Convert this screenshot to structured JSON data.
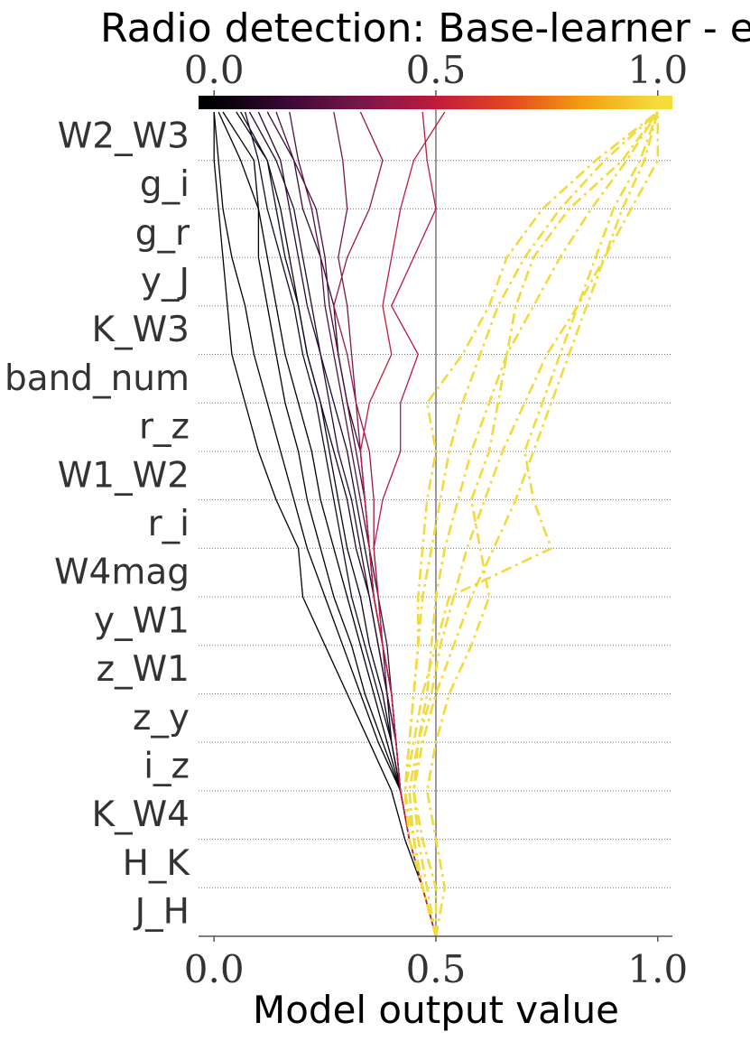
{
  "chart_data": {
    "type": "decision",
    "title": "Radio detection: Base-learner - et",
    "xlabel": "Model output value",
    "features": [
      "J_H",
      "H_K",
      "K_W4",
      "i_z",
      "z_y",
      "z_W1",
      "y_W1",
      "W4mag",
      "r_i",
      "W1_W2",
      "r_z",
      "band_num",
      "K_W3",
      "y_J",
      "g_r",
      "g_i",
      "W2_W3"
    ],
    "base_value": 0.5,
    "xlim": [
      -0.035,
      1.033
    ],
    "xticks": [
      {
        "value": 0,
        "label": "0.0"
      },
      {
        "value": 0.5,
        "label": "0.5"
      },
      {
        "value": 1,
        "label": "1.0"
      }
    ],
    "grid": true,
    "colorbar": {
      "lim": [
        0,
        1
      ],
      "ticks": [
        {
          "value": 0,
          "label": "0.0"
        },
        {
          "value": 0.5,
          "label": "0.5"
        },
        {
          "value": 1,
          "label": "1.0"
        }
      ],
      "colors": [
        "#000004",
        "#3b0a35",
        "#7a1649",
        "#c01a3e",
        "#e4471f",
        "#f59f10",
        "#f5dd3c"
      ]
    },
    "series": [
      {
        "color": "#000004",
        "linestyle": "solid",
        "values": [
          0.5,
          0.47,
          0.44,
          0.42,
          0.37,
          0.33,
          0.29,
          0.25,
          0.21,
          0.18,
          0.15,
          0.12,
          0.09,
          0.07,
          0.04,
          0.02,
          0.01,
          0.0
        ]
      },
      {
        "color": "#000004",
        "linestyle": "solid",
        "values": [
          0.5,
          0.47,
          0.44,
          0.42,
          0.39,
          0.36,
          0.33,
          0.3,
          0.27,
          0.24,
          0.22,
          0.19,
          0.16,
          0.14,
          0.12,
          0.1,
          0.06,
          0.01
        ]
      },
      {
        "color": "#0a0414",
        "linestyle": "solid",
        "values": [
          0.5,
          0.47,
          0.44,
          0.42,
          0.4,
          0.38,
          0.35,
          0.33,
          0.3,
          0.28,
          0.26,
          0.24,
          0.21,
          0.19,
          0.17,
          0.15,
          0.12,
          0.05
        ]
      },
      {
        "color": "#000004",
        "linestyle": "solid",
        "values": [
          0.5,
          0.47,
          0.44,
          0.42,
          0.38,
          0.34,
          0.31,
          0.27,
          0.24,
          0.21,
          0.19,
          0.16,
          0.14,
          0.12,
          0.1,
          0.1,
          0.09,
          0.02
        ]
      },
      {
        "color": "#120821",
        "linestyle": "solid",
        "values": [
          0.5,
          0.47,
          0.44,
          0.42,
          0.4,
          0.39,
          0.37,
          0.35,
          0.32,
          0.3,
          0.27,
          0.24,
          0.21,
          0.19,
          0.16,
          0.14,
          0.12,
          0.06
        ]
      },
      {
        "color": "#000004",
        "linestyle": "solid",
        "values": [
          0.5,
          0.47,
          0.43,
          0.4,
          0.35,
          0.3,
          0.25,
          0.2,
          0.19,
          0.14,
          0.1,
          0.07,
          0.04,
          0.03,
          0.02,
          0.01,
          0.0,
          0.0
        ]
      },
      {
        "color": "#1b0c2c",
        "linestyle": "solid",
        "values": [
          0.5,
          0.47,
          0.44,
          0.42,
          0.41,
          0.4,
          0.38,
          0.36,
          0.34,
          0.32,
          0.3,
          0.27,
          0.24,
          0.22,
          0.2,
          0.18,
          0.14,
          0.08
        ]
      },
      {
        "color": "#250b31",
        "linestyle": "solid",
        "values": [
          0.5,
          0.47,
          0.44,
          0.42,
          0.41,
          0.39,
          0.37,
          0.35,
          0.33,
          0.31,
          0.28,
          0.26,
          0.24,
          0.21,
          0.19,
          0.17,
          0.15,
          0.1
        ]
      },
      {
        "color": "#3b0a35",
        "linestyle": "solid",
        "values": [
          0.5,
          0.47,
          0.44,
          0.42,
          0.41,
          0.4,
          0.39,
          0.37,
          0.35,
          0.34,
          0.33,
          0.3,
          0.28,
          0.27,
          0.24,
          0.2,
          0.18,
          0.12
        ]
      },
      {
        "color": "#140a24",
        "linestyle": "solid",
        "values": [
          0.5,
          0.47,
          0.44,
          0.42,
          0.4,
          0.37,
          0.34,
          0.31,
          0.29,
          0.27,
          0.25,
          0.23,
          0.2,
          0.18,
          0.15,
          0.12,
          0.1,
          0.07
        ]
      },
      {
        "color": "#4a0d3c",
        "linestyle": "solid",
        "values": [
          0.5,
          0.47,
          0.44,
          0.42,
          0.41,
          0.39,
          0.38,
          0.36,
          0.35,
          0.34,
          0.32,
          0.3,
          0.28,
          0.26,
          0.25,
          0.23,
          0.18,
          0.14
        ]
      },
      {
        "color": "#551040",
        "linestyle": "solid",
        "values": [
          0.5,
          0.47,
          0.44,
          0.42,
          0.41,
          0.4,
          0.38,
          0.36,
          0.35,
          0.33,
          0.31,
          0.29,
          0.27,
          0.25,
          0.24,
          0.22,
          0.19,
          0.17
        ]
      },
      {
        "color": "#7a1649",
        "linestyle": "solid",
        "values": [
          0.5,
          0.47,
          0.44,
          0.42,
          0.41,
          0.4,
          0.38,
          0.36,
          0.35,
          0.34,
          0.33,
          0.32,
          0.31,
          0.3,
          0.28,
          0.3,
          0.29,
          0.27
        ]
      },
      {
        "color": "#9a1747",
        "linestyle": "solid",
        "values": [
          0.5,
          0.47,
          0.44,
          0.42,
          0.41,
          0.4,
          0.38,
          0.37,
          0.36,
          0.36,
          0.35,
          0.32,
          0.3,
          0.27,
          0.3,
          0.35,
          0.38,
          0.33
        ]
      },
      {
        "color": "#b81a42",
        "linestyle": "solid",
        "values": [
          0.5,
          0.47,
          0.44,
          0.42,
          0.41,
          0.4,
          0.38,
          0.37,
          0.36,
          0.38,
          0.42,
          0.42,
          0.46,
          0.4,
          0.45,
          0.5,
          0.48,
          0.47
        ]
      },
      {
        "color": "#c01a3e",
        "linestyle": "solid",
        "values": [
          0.5,
          0.47,
          0.44,
          0.42,
          0.41,
          0.4,
          0.38,
          0.36,
          0.35,
          0.34,
          0.33,
          0.35,
          0.4,
          0.38,
          0.4,
          0.42,
          0.45,
          0.52
        ]
      },
      {
        "color": "#f3da3c",
        "linestyle": "dashdot",
        "values": [
          0.5,
          0.5,
          0.47,
          0.45,
          0.46,
          0.48,
          0.49,
          0.5,
          0.52,
          0.55,
          0.58,
          0.62,
          0.66,
          0.72,
          0.78,
          0.85,
          0.93,
          1.0
        ]
      },
      {
        "color": "#f3da3c",
        "linestyle": "dashdot",
        "values": [
          0.5,
          0.47,
          0.45,
          0.43,
          0.44,
          0.45,
          0.46,
          0.47,
          0.49,
          0.51,
          0.53,
          0.56,
          0.6,
          0.64,
          0.7,
          0.78,
          0.88,
          1.0
        ]
      },
      {
        "color": "#f3da3c",
        "linestyle": "dashdot",
        "values": [
          0.5,
          0.52,
          0.5,
          0.48,
          0.5,
          0.53,
          0.58,
          0.62,
          0.6,
          0.58,
          0.62,
          0.64,
          0.66,
          0.68,
          0.72,
          0.8,
          0.92,
          1.0
        ]
      },
      {
        "color": "#f3da3c",
        "linestyle": "dashdot",
        "values": [
          0.5,
          0.47,
          0.44,
          0.43,
          0.45,
          0.47,
          0.5,
          0.53,
          0.76,
          0.72,
          0.7,
          0.74,
          0.78,
          0.82,
          0.86,
          0.9,
          0.96,
          1.0
        ]
      },
      {
        "color": "#f3da3c",
        "linestyle": "dashdot",
        "values": [
          0.5,
          0.47,
          0.45,
          0.44,
          0.46,
          0.49,
          0.51,
          0.54,
          0.57,
          0.61,
          0.65,
          0.7,
          0.75,
          0.82,
          0.88,
          0.94,
          1.0,
          1.0
        ]
      },
      {
        "color": "#f3da3c",
        "linestyle": "dashdot",
        "values": [
          0.5,
          0.47,
          0.44,
          0.43,
          0.44,
          0.45,
          0.46,
          0.46,
          0.47,
          0.48,
          0.5,
          0.48,
          0.56,
          0.62,
          0.66,
          0.74,
          0.86,
          1.0
        ]
      },
      {
        "color": "#f3da3c",
        "linestyle": "dashdot",
        "values": [
          0.5,
          0.48,
          0.46,
          0.45,
          0.47,
          0.5,
          0.54,
          0.58,
          0.63,
          0.68,
          0.72,
          0.76,
          0.8,
          0.84,
          0.88,
          0.92,
          0.97,
          1.0
        ]
      }
    ]
  }
}
